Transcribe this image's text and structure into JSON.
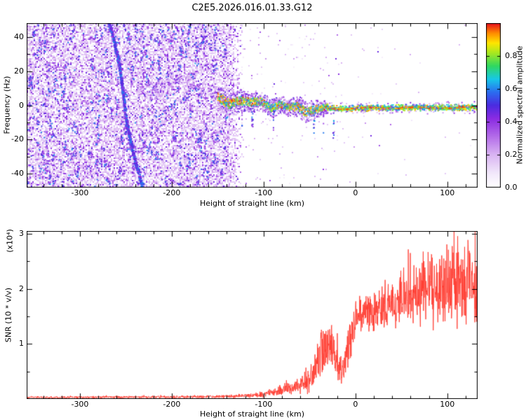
{
  "title": "C2E5.2026.016.01.33.G12",
  "spectrogram": {
    "xlabel": "Height of straight line (km)",
    "ylabel": "Frequency (Hz)",
    "xlim": [
      -358,
      133
    ],
    "ylim": [
      -48,
      48
    ],
    "xticks": [
      -300,
      -200,
      -100,
      0,
      100
    ],
    "xtick_labels": [
      "-300",
      "-200",
      "-100",
      "0",
      "100"
    ],
    "yticks": [
      -40,
      -20,
      0,
      20,
      40
    ],
    "ytick_labels": [
      "-40",
      "-20",
      "0",
      "20",
      "40"
    ],
    "xminor_step": 20,
    "yminor_step": 10,
    "colorbar": {
      "label": "Normalized spectral amplitude",
      "range": [
        0,
        1
      ],
      "ticks": [
        0,
        0.2,
        0.4,
        0.6,
        0.8
      ],
      "tick_labels": [
        "0.0",
        "0.2",
        "0.4",
        "0.6",
        "0.8"
      ]
    }
  },
  "snr_plot": {
    "xlabel": "Height of straight line (km)",
    "ylabel": "SNR (10 * v/v)",
    "scale_note": "(x10⁴)",
    "xlim": [
      -358,
      133
    ],
    "ylim": [
      0,
      3.05
    ],
    "xticks": [
      -300,
      -200,
      -100,
      0,
      100
    ],
    "xtick_labels": [
      "-300",
      "-200",
      "-100",
      "0",
      "100"
    ],
    "yticks": [
      1,
      2,
      3
    ],
    "ytick_labels": [
      "1",
      "2",
      "3"
    ],
    "xminor_step": 20,
    "yminor_step": 0.5
  },
  "chart_data": [
    {
      "type": "heatmap",
      "title": "C2E5.2026.016.01.33.G12",
      "xlabel": "Height of straight line (km)",
      "ylabel": "Frequency (Hz)",
      "xlim": [
        -358,
        133
      ],
      "ylim": [
        -48,
        48
      ],
      "colorbar_label": "Normalized spectral amplitude",
      "colorbar_ticks": [
        0,
        0.2,
        0.4,
        0.6,
        0.8
      ],
      "colormap_stops": [
        [
          0.0,
          "#ffffff"
        ],
        [
          0.08,
          "#f3eafb"
        ],
        [
          0.2,
          "#d9b3f2"
        ],
        [
          0.32,
          "#b066e8"
        ],
        [
          0.42,
          "#8a2be2"
        ],
        [
          0.5,
          "#4b2be0"
        ],
        [
          0.58,
          "#2b6df0"
        ],
        [
          0.66,
          "#18c8e8"
        ],
        [
          0.74,
          "#30d860"
        ],
        [
          0.82,
          "#a8e820"
        ],
        [
          0.88,
          "#ffe600"
        ],
        [
          0.94,
          "#ff8c00"
        ],
        [
          1.0,
          "#e8101e"
        ]
      ],
      "noise_region": {
        "x_end": -140,
        "fade_end": -122,
        "density": 0.62
      },
      "sparse_noise": {
        "density": 0.014
      },
      "streak": {
        "x_top": -268,
        "x_bottom": -233,
        "y_top": 48,
        "y_bottom": -48,
        "width_km": 2.4,
        "value_range": [
          0.38,
          0.62
        ]
      },
      "pre_band": {
        "x_start": -237,
        "x_end": -150,
        "center_hz": 11,
        "spread_hz": 7,
        "value_range": [
          0.15,
          0.5
        ]
      },
      "trace_center": [
        [
          -150,
          4
        ],
        [
          -138,
          1.5
        ],
        [
          -126,
          3.5
        ],
        [
          -114,
          0.5
        ],
        [
          -102,
          2
        ],
        [
          -92,
          -0.5
        ],
        [
          -82,
          0.5
        ],
        [
          -72,
          -2.5
        ],
        [
          -62,
          -0.5
        ],
        [
          -54,
          -3
        ],
        [
          -46,
          -2
        ],
        [
          -38,
          -2.5
        ],
        [
          -30,
          -1.8
        ],
        [
          0,
          -1.8
        ],
        [
          40,
          -1.2
        ],
        [
          80,
          -1.5
        ],
        [
          133,
          -1.2
        ]
      ],
      "trace": {
        "wide_start": -150,
        "tight_start": -30,
        "wide_spread_hz": 7,
        "tight_spread_hz": 1.8,
        "core_value_range": [
          0.58,
          1.0
        ],
        "fringe_value_range": [
          0.15,
          0.5
        ]
      },
      "spikes": [
        {
          "km": -45,
          "to_hz": -17
        },
        {
          "km": -24,
          "to_hz": -20
        }
      ]
    },
    {
      "type": "line",
      "xlabel": "Height of straight line (km)",
      "ylabel": "SNR (10 * v/v)",
      "y_scale_note": "(x10⁴)",
      "xlim": [
        -358,
        133
      ],
      "ylim": [
        0,
        3.05
      ],
      "series": [
        {
          "name": "SNR",
          "color": "#ff3b30",
          "control_points": [
            [
              -358,
              0.03,
              0.02
            ],
            [
              -250,
              0.035,
              0.025
            ],
            [
              -180,
              0.04,
              0.03
            ],
            [
              -130,
              0.05,
              0.035
            ],
            [
              -100,
              0.08,
              0.06
            ],
            [
              -85,
              0.15,
              0.1
            ],
            [
              -70,
              0.2,
              0.14
            ],
            [
              -60,
              0.25,
              0.18
            ],
            [
              -50,
              0.35,
              0.3
            ],
            [
              -42,
              0.6,
              0.45
            ],
            [
              -35,
              0.9,
              0.5
            ],
            [
              -27,
              1.0,
              0.5
            ],
            [
              -20,
              0.6,
              0.4
            ],
            [
              -14,
              0.45,
              0.3
            ],
            [
              -8,
              0.9,
              0.5
            ],
            [
              -2,
              1.4,
              0.4
            ],
            [
              5,
              1.5,
              0.35
            ],
            [
              15,
              1.55,
              0.4
            ],
            [
              30,
              1.65,
              0.45
            ],
            [
              45,
              1.75,
              0.5
            ],
            [
              60,
              1.9,
              0.6
            ],
            [
              75,
              2.0,
              0.75
            ],
            [
              90,
              2.05,
              0.9
            ],
            [
              105,
              2.1,
              0.95
            ],
            [
              120,
              2.15,
              0.95
            ],
            [
              133,
              2.05,
              0.9
            ]
          ]
        }
      ]
    }
  ]
}
